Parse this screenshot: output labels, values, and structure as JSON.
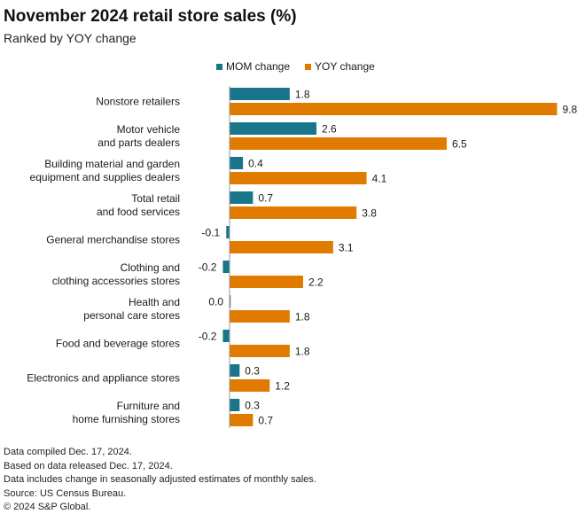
{
  "header": {
    "title": "November 2024 retail store sales (%)",
    "subtitle": "Ranked by YOY change"
  },
  "colors": {
    "mom": "#19758c",
    "yoy": "#e07b00",
    "axis": "#9a9a9a",
    "text": "#1a1a1a"
  },
  "chart_data": {
    "type": "bar",
    "orientation": "horizontal",
    "title": "November 2024 retail store sales (%)",
    "subtitle": "Ranked by YOY change",
    "xlim": [
      -0.4,
      10.4
    ],
    "grid": false,
    "legend_position": "top",
    "categories": [
      [
        "Nonstore retailers"
      ],
      [
        "Motor vehicle",
        "and parts dealers"
      ],
      [
        "Building material and garden",
        "equipment and supplies dealers"
      ],
      [
        "Total retail",
        "and food services"
      ],
      [
        "General merchandise stores"
      ],
      [
        "Clothing and",
        "clothing accessories stores"
      ],
      [
        "Health and",
        "personal care stores"
      ],
      [
        "Food and beverage stores"
      ],
      [
        "Electronics and appliance stores"
      ],
      [
        "Furniture and",
        "home furnishing stores"
      ]
    ],
    "series": [
      {
        "name": "MOM change",
        "color_key": "mom",
        "values": [
          1.8,
          2.6,
          0.4,
          0.7,
          -0.1,
          -0.2,
          0.0,
          -0.2,
          0.3,
          0.3
        ],
        "labels": [
          "1.8",
          "2.6",
          "0.4",
          "0.7",
          "-0.1",
          "-0.2",
          "0.0",
          "-0.2",
          "0.3",
          "0.3"
        ]
      },
      {
        "name": "YOY change",
        "color_key": "yoy",
        "values": [
          9.8,
          6.5,
          4.1,
          3.8,
          3.1,
          2.2,
          1.8,
          1.8,
          1.2,
          0.7
        ],
        "labels": [
          "9.8",
          "6.5",
          "4.1",
          "3.8",
          "3.1",
          "2.2",
          "1.8",
          "1.8",
          "1.2",
          "0.7"
        ]
      }
    ]
  },
  "footnotes": [
    "Data compiled Dec. 17, 2024.",
    "Based on data released Dec. 17, 2024.",
    "Data includes change in seasonally adjusted estimates of monthly sales.",
    "Source: US Census Bureau.",
    "© 2024 S&P Global."
  ]
}
